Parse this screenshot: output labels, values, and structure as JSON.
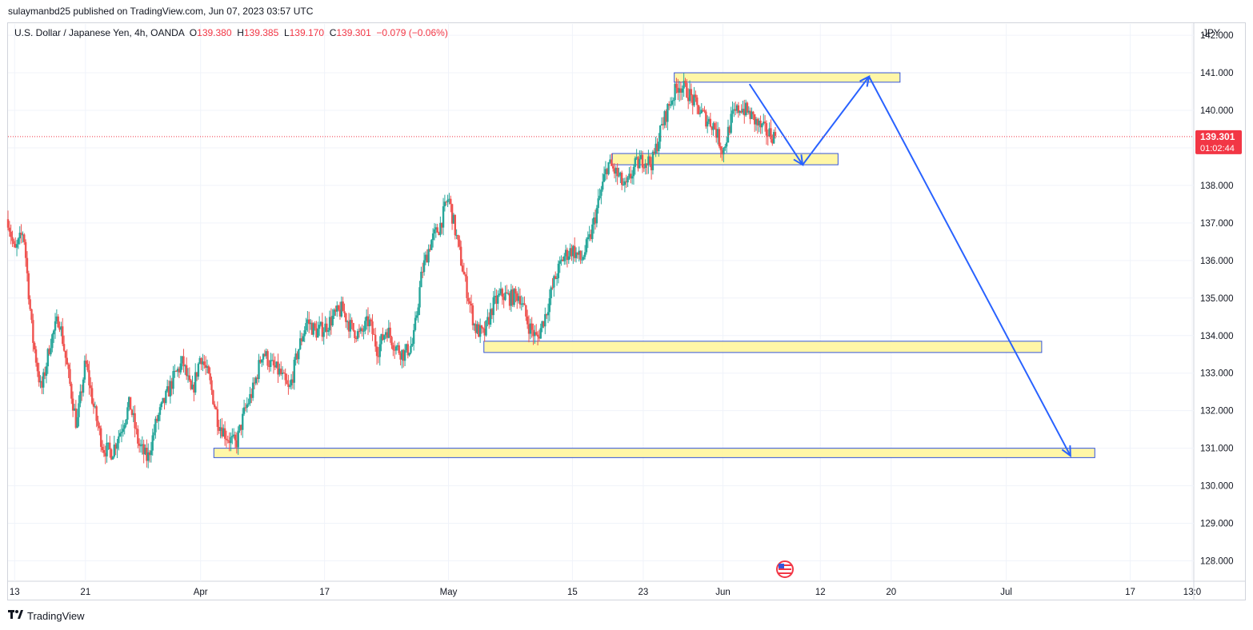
{
  "publisher_line": "sulaymanbd25 published on TradingView.com, Jun 07, 2023 03:57 UTC",
  "legend": {
    "symbol": "U.S. Dollar / Japanese Yen, 4h, OANDA",
    "o_label": "O",
    "o_value": "139.380",
    "h_label": "H",
    "h_value": "139.385",
    "l_label": "L",
    "l_value": "139.170",
    "c_label": "C",
    "c_value": "139.301",
    "change": "−0.079 (−0.06%)"
  },
  "currency_label": "JPY",
  "last_price_tag": {
    "price": "139.301",
    "countdown": "01:02:44"
  },
  "brand": {
    "name": "TradingView"
  },
  "colors": {
    "up": "#26a69a",
    "down": "#ef5350",
    "zone_fill": "#fff59d",
    "zone_border": "#3455db",
    "arrow": "#2962ff",
    "price_line": "#f23645"
  },
  "chart_data": {
    "type": "candlestick",
    "instrument": "USDJPY",
    "timeframe": "4h",
    "ylim": [
      127.5,
      142.3
    ],
    "y_ticks": [
      128.0,
      129.0,
      130.0,
      131.0,
      132.0,
      133.0,
      134.0,
      135.0,
      136.0,
      137.0,
      138.0,
      139.0,
      140.0,
      141.0,
      142.0
    ],
    "y_tick_labels": [
      "128.000",
      "129.000",
      "130.000",
      "131.000",
      "132.000",
      "133.000",
      "134.000",
      "135.000",
      "136.000",
      "137.000",
      "138.000",
      "139.000",
      "140.000",
      "141.000",
      "142.000"
    ],
    "x_range": [
      "2023-03-12T06:00",
      "2023-07-24T00:00"
    ],
    "x_ticks": [
      {
        "t": "2023-03-13T00:00",
        "label": "13"
      },
      {
        "t": "2023-03-21T00:00",
        "label": "21"
      },
      {
        "t": "2023-04-03T00:00",
        "label": "Apr"
      },
      {
        "t": "2023-04-17T00:00",
        "label": "17"
      },
      {
        "t": "2023-05-01T00:00",
        "label": "May"
      },
      {
        "t": "2023-05-15T00:00",
        "label": "15"
      },
      {
        "t": "2023-05-23T00:00",
        "label": "23"
      },
      {
        "t": "2023-06-01T00:00",
        "label": "Jun"
      },
      {
        "t": "2023-06-12T00:00",
        "label": "12"
      },
      {
        "t": "2023-06-20T00:00",
        "label": "20"
      },
      {
        "t": "2023-07-03T00:00",
        "label": "Jul"
      },
      {
        "t": "2023-07-17T00:00",
        "label": "17"
      },
      {
        "t": "2023-07-24T00:00",
        "label": "13:0"
      }
    ],
    "close_path": [
      [
        "2023-03-12T06:00",
        137.1
      ],
      [
        "2023-03-13T00:00",
        136.2
      ],
      [
        "2023-03-14T00:00",
        136.8
      ],
      [
        "2023-03-15T00:00",
        134.0
      ],
      [
        "2023-03-16T00:00",
        132.5
      ],
      [
        "2023-03-17T00:00",
        133.8
      ],
      [
        "2023-03-18T00:00",
        134.5
      ],
      [
        "2023-03-20T00:00",
        131.6
      ],
      [
        "2023-03-21T00:00",
        133.3
      ],
      [
        "2023-03-22T00:00",
        132.0
      ],
      [
        "2023-03-23T00:00",
        131.0
      ],
      [
        "2023-03-24T00:00",
        130.9
      ],
      [
        "2023-03-25T00:00",
        131.5
      ],
      [
        "2023-03-26T00:00",
        132.2
      ],
      [
        "2023-03-27T00:00",
        131.1
      ],
      [
        "2023-03-28T00:00",
        130.7
      ],
      [
        "2023-03-29T00:00",
        131.7
      ],
      [
        "2023-03-30T00:00",
        132.3
      ],
      [
        "2023-03-31T00:00",
        132.9
      ],
      [
        "2023-04-01T00:00",
        133.3
      ],
      [
        "2023-04-02T00:00",
        132.4
      ],
      [
        "2023-04-03T00:00",
        133.5
      ],
      [
        "2023-04-04T00:00",
        132.8
      ],
      [
        "2023-04-05T00:00",
        131.7
      ],
      [
        "2023-04-06T00:00",
        131.3
      ],
      [
        "2023-04-07T00:00",
        131.1
      ],
      [
        "2023-04-08T00:00",
        132.0
      ],
      [
        "2023-04-09T00:00",
        132.6
      ],
      [
        "2023-04-10T00:00",
        133.6
      ],
      [
        "2023-04-11T00:00",
        133.2
      ],
      [
        "2023-04-12T00:00",
        133.0
      ],
      [
        "2023-04-13T00:00",
        132.5
      ],
      [
        "2023-04-14T00:00",
        133.6
      ],
      [
        "2023-04-15T00:00",
        134.4
      ],
      [
        "2023-04-16T00:00",
        134.1
      ],
      [
        "2023-04-17T00:00",
        134.2
      ],
      [
        "2023-04-18T00:00",
        134.5
      ],
      [
        "2023-04-19T00:00",
        134.7
      ],
      [
        "2023-04-20T00:00",
        134.2
      ],
      [
        "2023-04-21T00:00",
        134.0
      ],
      [
        "2023-04-22T00:00",
        134.4
      ],
      [
        "2023-04-23T00:00",
        133.6
      ],
      [
        "2023-04-24T00:00",
        134.2
      ],
      [
        "2023-04-25T00:00",
        133.7
      ],
      [
        "2023-04-26T00:00",
        133.5
      ],
      [
        "2023-04-27T00:00",
        133.8
      ],
      [
        "2023-04-28T00:00",
        135.7
      ],
      [
        "2023-04-29T00:00",
        136.5
      ],
      [
        "2023-04-30T00:00",
        136.9
      ],
      [
        "2023-05-01T00:00",
        137.7
      ],
      [
        "2023-05-02T00:00",
        136.5
      ],
      [
        "2023-05-03T00:00",
        135.3
      ],
      [
        "2023-05-04T00:00",
        134.2
      ],
      [
        "2023-05-05T00:00",
        134.0
      ],
      [
        "2023-05-06T00:00",
        134.8
      ],
      [
        "2023-05-07T00:00",
        135.1
      ],
      [
        "2023-05-08T00:00",
        135.0
      ],
      [
        "2023-05-09T00:00",
        135.1
      ],
      [
        "2023-05-10T00:00",
        134.3
      ],
      [
        "2023-05-11T00:00",
        133.9
      ],
      [
        "2023-05-12T00:00",
        134.6
      ],
      [
        "2023-05-13T00:00",
        135.5
      ],
      [
        "2023-05-14T00:00",
        136.1
      ],
      [
        "2023-05-15T00:00",
        136.3
      ],
      [
        "2023-05-16T00:00",
        136.0
      ],
      [
        "2023-05-17T00:00",
        136.6
      ],
      [
        "2023-05-18T00:00",
        137.6
      ],
      [
        "2023-05-19T00:00",
        138.6
      ],
      [
        "2023-05-20T00:00",
        138.3
      ],
      [
        "2023-05-21T00:00",
        137.9
      ],
      [
        "2023-05-22T00:00",
        138.5
      ],
      [
        "2023-05-23T00:00",
        138.7
      ],
      [
        "2023-05-24T00:00",
        138.6
      ],
      [
        "2023-05-25T00:00",
        139.5
      ],
      [
        "2023-05-26T00:00",
        140.2
      ],
      [
        "2023-05-27T00:00",
        140.7
      ],
      [
        "2023-05-28T00:00",
        140.5
      ],
      [
        "2023-05-29T00:00",
        140.1
      ],
      [
        "2023-05-30T00:00",
        139.8
      ],
      [
        "2023-05-31T00:00",
        139.6
      ],
      [
        "2023-06-01T00:00",
        138.9
      ],
      [
        "2023-06-02T00:00",
        139.8
      ],
      [
        "2023-06-03T00:00",
        140.1
      ],
      [
        "2023-06-04T00:00",
        139.9
      ],
      [
        "2023-06-05T00:00",
        139.6
      ],
      [
        "2023-06-06T00:00",
        139.4
      ],
      [
        "2023-06-07T00:00",
        139.301
      ]
    ],
    "last_price": 139.301,
    "zones": [
      {
        "t1": "2023-05-26T12:00",
        "t2": "2023-06-21T00:00",
        "y1": 140.75,
        "y2": 141.0
      },
      {
        "t1": "2023-05-19T12:00",
        "t2": "2023-06-14T00:00",
        "y1": 138.55,
        "y2": 138.85
      },
      {
        "t1": "2023-05-05T00:00",
        "t2": "2023-07-07T00:00",
        "y1": 133.55,
        "y2": 133.85
      },
      {
        "t1": "2023-04-04T12:00",
        "t2": "2023-07-13T00:00",
        "y1": 130.75,
        "y2": 131.0
      }
    ],
    "arrows": [
      {
        "from": [
          "2023-06-04T00:00",
          140.7
        ],
        "to": [
          "2023-06-10T00:00",
          138.55
        ]
      },
      {
        "from": [
          "2023-06-10T00:00",
          138.55
        ],
        "to": [
          "2023-06-17T12:00",
          140.9
        ]
      },
      {
        "from": [
          "2023-06-17T12:00",
          140.9
        ],
        "to": [
          "2023-07-10T06:00",
          130.8
        ]
      }
    ]
  }
}
